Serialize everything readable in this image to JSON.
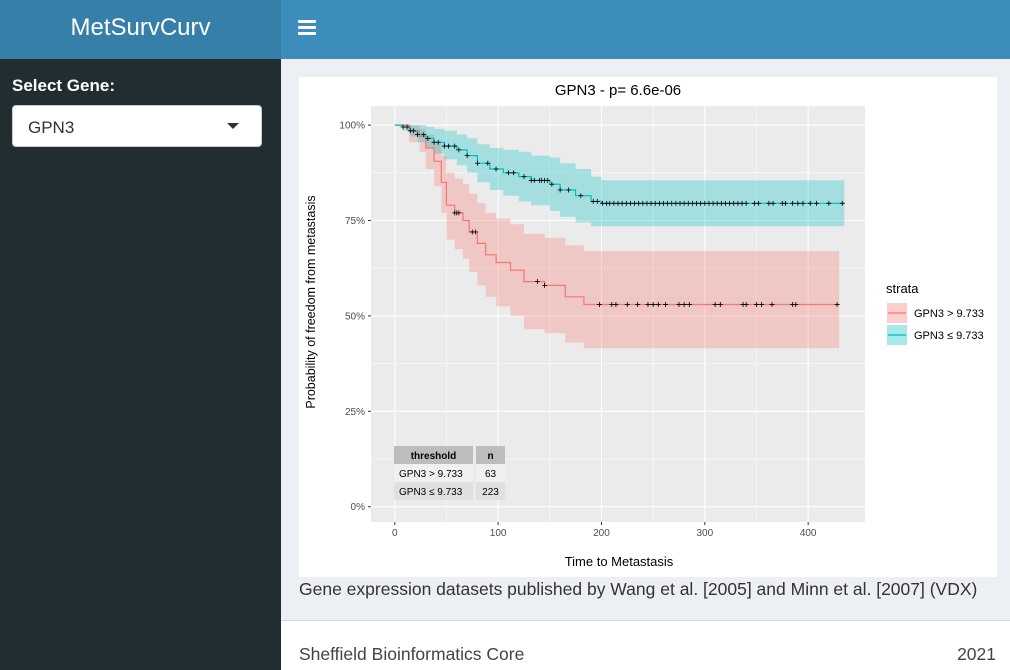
{
  "app": {
    "title": "MetSurvCurv"
  },
  "sidebar": {
    "select_label": "Select Gene:",
    "selected_gene": "GPN3"
  },
  "header": {
    "menu_icon": "hamburger-icon"
  },
  "caption": "Gene expression datasets published by Wang et al. [2005] and Minn et al. [2007] (VDX)",
  "footer": {
    "left": "Sheffield Bioinformatics Core",
    "right": "2021"
  },
  "colors": {
    "high": "#F8766D",
    "low": "#00BFC4",
    "panel": "#EBEBEB",
    "header": "#3c8dbc",
    "logo": "#367fa9",
    "sidebar": "#222d32"
  },
  "chart_data": {
    "type": "line",
    "title": "GPN3 - p= 6.6e-06",
    "xlabel": "Time to Metastasis",
    "ylabel": "Probability of freedom from metastasis",
    "xlim": [
      -23,
      455
    ],
    "ylim": [
      -0.04,
      1.05
    ],
    "x_ticks": [
      0,
      100,
      200,
      300,
      400
    ],
    "y_ticks": [
      0,
      0.25,
      0.5,
      0.75,
      1
    ],
    "y_tick_labels": [
      "0%",
      "25%",
      "50%",
      "75%",
      "100%"
    ],
    "legend": {
      "title": "strata",
      "position": "right"
    },
    "series": [
      {
        "name": "GPN3 > 9.733",
        "color": "#F8766D",
        "steps": [
          [
            0,
            1.0
          ],
          [
            14,
            0.985
          ],
          [
            24,
            0.97
          ],
          [
            30,
            0.94
          ],
          [
            38,
            0.905
          ],
          [
            45,
            0.85
          ],
          [
            50,
            0.79
          ],
          [
            58,
            0.77
          ],
          [
            66,
            0.75
          ],
          [
            72,
            0.72
          ],
          [
            80,
            0.69
          ],
          [
            88,
            0.66
          ],
          [
            98,
            0.64
          ],
          [
            112,
            0.62
          ],
          [
            125,
            0.59
          ],
          [
            145,
            0.58
          ],
          [
            165,
            0.55
          ],
          [
            183,
            0.53
          ],
          [
            430,
            0.53
          ]
        ],
        "ci_upper": [
          [
            0,
            1.0
          ],
          [
            14,
            1.0
          ],
          [
            24,
            0.99
          ],
          [
            30,
            0.975
          ],
          [
            38,
            0.955
          ],
          [
            45,
            0.92
          ],
          [
            50,
            0.875
          ],
          [
            58,
            0.86
          ],
          [
            66,
            0.845
          ],
          [
            72,
            0.82
          ],
          [
            80,
            0.795
          ],
          [
            88,
            0.77
          ],
          [
            98,
            0.755
          ],
          [
            112,
            0.74
          ],
          [
            125,
            0.715
          ],
          [
            145,
            0.705
          ],
          [
            165,
            0.685
          ],
          [
            183,
            0.67
          ],
          [
            430,
            0.67
          ]
        ],
        "ci_lower": [
          [
            0,
            1.0
          ],
          [
            14,
            0.955
          ],
          [
            24,
            0.93
          ],
          [
            30,
            0.885
          ],
          [
            38,
            0.84
          ],
          [
            45,
            0.77
          ],
          [
            50,
            0.7
          ],
          [
            58,
            0.675
          ],
          [
            66,
            0.65
          ],
          [
            72,
            0.615
          ],
          [
            80,
            0.58
          ],
          [
            88,
            0.55
          ],
          [
            98,
            0.525
          ],
          [
            112,
            0.5
          ],
          [
            125,
            0.465
          ],
          [
            145,
            0.455
          ],
          [
            165,
            0.43
          ],
          [
            183,
            0.415
          ],
          [
            430,
            0.415
          ]
        ],
        "censor_times": [
          58,
          60,
          62,
          75,
          78,
          138,
          145,
          198,
          210,
          214,
          225,
          235,
          245,
          250,
          255,
          262,
          275,
          280,
          285,
          310,
          315,
          337,
          340,
          350,
          355,
          365,
          385,
          388,
          428
        ]
      },
      {
        "name": "GPN3 ≤ 9.733",
        "color": "#00BFC4",
        "steps": [
          [
            0,
            1.0
          ],
          [
            8,
            0.995
          ],
          [
            15,
            0.985
          ],
          [
            22,
            0.975
          ],
          [
            30,
            0.965
          ],
          [
            38,
            0.955
          ],
          [
            48,
            0.945
          ],
          [
            60,
            0.935
          ],
          [
            70,
            0.92
          ],
          [
            80,
            0.9
          ],
          [
            92,
            0.885
          ],
          [
            105,
            0.875
          ],
          [
            120,
            0.865
          ],
          [
            132,
            0.855
          ],
          [
            150,
            0.845
          ],
          [
            160,
            0.83
          ],
          [
            175,
            0.815
          ],
          [
            190,
            0.8
          ],
          [
            200,
            0.795
          ],
          [
            435,
            0.795
          ]
        ],
        "ci_upper": [
          [
            0,
            1.0
          ],
          [
            8,
            1.0
          ],
          [
            15,
            1.0
          ],
          [
            22,
            1.0
          ],
          [
            30,
            0.995
          ],
          [
            38,
            0.99
          ],
          [
            48,
            0.985
          ],
          [
            60,
            0.975
          ],
          [
            70,
            0.965
          ],
          [
            80,
            0.95
          ],
          [
            92,
            0.94
          ],
          [
            105,
            0.935
          ],
          [
            120,
            0.93
          ],
          [
            132,
            0.92
          ],
          [
            150,
            0.915
          ],
          [
            160,
            0.9
          ],
          [
            175,
            0.885
          ],
          [
            190,
            0.865
          ],
          [
            200,
            0.855
          ],
          [
            435,
            0.855
          ]
        ],
        "ci_lower": [
          [
            0,
            1.0
          ],
          [
            8,
            0.985
          ],
          [
            15,
            0.97
          ],
          [
            22,
            0.955
          ],
          [
            30,
            0.94
          ],
          [
            38,
            0.925
          ],
          [
            48,
            0.91
          ],
          [
            60,
            0.895
          ],
          [
            70,
            0.875
          ],
          [
            80,
            0.85
          ],
          [
            92,
            0.83
          ],
          [
            105,
            0.815
          ],
          [
            120,
            0.8
          ],
          [
            132,
            0.79
          ],
          [
            150,
            0.775
          ],
          [
            160,
            0.76
          ],
          [
            175,
            0.745
          ],
          [
            190,
            0.735
          ],
          [
            200,
            0.735
          ],
          [
            435,
            0.735
          ]
        ],
        "censor_times": [
          8,
          12,
          15,
          18,
          22,
          28,
          32,
          38,
          42,
          48,
          52,
          58,
          62,
          70,
          80,
          90,
          98,
          110,
          115,
          125,
          132,
          135,
          140,
          142,
          145,
          148,
          152,
          160,
          168,
          180,
          192,
          196,
          201,
          205,
          208,
          212,
          216,
          220,
          224,
          228,
          232,
          236,
          240,
          244,
          248,
          252,
          256,
          260,
          264,
          268,
          272,
          276,
          280,
          284,
          288,
          292,
          296,
          300,
          304,
          308,
          312,
          316,
          320,
          324,
          328,
          332,
          336,
          340,
          348,
          352,
          362,
          366,
          375,
          378,
          385,
          390,
          395,
          402,
          408,
          420,
          433
        ]
      }
    ],
    "risk_table": {
      "headers": [
        "threshold",
        "n"
      ],
      "rows": [
        [
          "GPN3 > 9.733",
          "63"
        ],
        [
          "GPN3 ≤ 9.733",
          "223"
        ]
      ]
    }
  }
}
